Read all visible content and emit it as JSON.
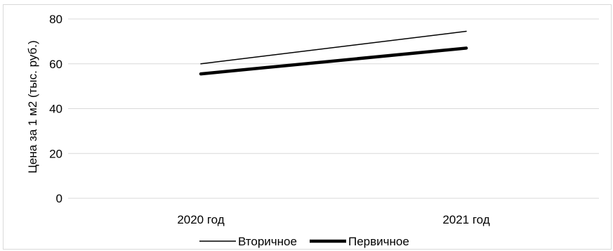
{
  "chart_data": {
    "type": "line",
    "categories": [
      "2020 год",
      "2021 год"
    ],
    "series": [
      {
        "name": "Вторичное",
        "values": [
          60,
          74.5
        ],
        "color": "#000000",
        "weight": "thin"
      },
      {
        "name": "Первичное",
        "values": [
          55.5,
          67
        ],
        "color": "#000000",
        "weight": "thick"
      }
    ],
    "ylabel": "Цена за 1 м2 (тыс. руб.)",
    "xlabel": "",
    "ylim": [
      0,
      80
    ],
    "yticks": [
      "0",
      "20",
      "40",
      "60",
      "80"
    ],
    "grid": true,
    "legend": "bottom"
  }
}
